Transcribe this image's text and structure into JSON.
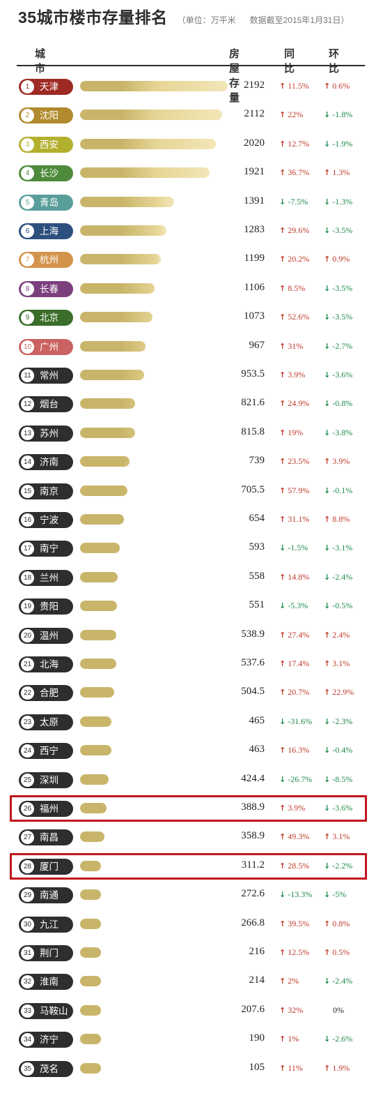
{
  "header": {
    "title": "35城市楼市存量排名",
    "unit_note": "（单位：万平米",
    "as_of_note": "数据截至2015年1月31日）",
    "col_city": "城市",
    "col_stock": "房屋存量",
    "col_yoy": "同比",
    "col_mom": "环比"
  },
  "colors": {
    "bar_dark": "#c9b56a",
    "bar_light": "#f2e6b8",
    "up": "#c0392b",
    "down": "#1f8a4c",
    "highlight": "#c0171c",
    "default_pill": "#2e2e2e"
  },
  "highlighted_ranks": [
    26,
    28
  ],
  "chart_data": {
    "type": "bar",
    "title": "35城市楼市存量排名",
    "ylabel": "房屋存量",
    "categories": [
      "天津",
      "沈阳",
      "西安",
      "长沙",
      "青岛",
      "上海",
      "杭州",
      "长春",
      "北京",
      "广州",
      "常州",
      "烟台",
      "苏州",
      "济南",
      "南京",
      "宁波",
      "南宁",
      "兰州",
      "贵阳",
      "温州",
      "北海",
      "合肥",
      "太原",
      "西宁",
      "深圳",
      "福州",
      "南昌",
      "厦门",
      "南通",
      "九江",
      "荆门",
      "淮南",
      "马鞍山",
      "济宁",
      "茂名"
    ],
    "rows": [
      {
        "rank": "1",
        "city": "天津",
        "stock": 2192,
        "stock_text": "2192",
        "yoy": "11.5%",
        "yoy_dir": "up",
        "mom": "0.6%",
        "mom_dir": "up",
        "pill": "#9e2a24"
      },
      {
        "rank": "2",
        "city": "沈阳",
        "stock": 2112,
        "stock_text": "2112",
        "yoy": "22%",
        "yoy_dir": "up",
        "mom": "-1.8%",
        "mom_dir": "down",
        "pill": "#b08a2c"
      },
      {
        "rank": "3",
        "city": "西安",
        "stock": 2020,
        "stock_text": "2020",
        "yoy": "12.7%",
        "yoy_dir": "up",
        "mom": "-1.9%",
        "mom_dir": "down",
        "pill": "#b3b02e"
      },
      {
        "rank": "4",
        "city": "长沙",
        "stock": 1921,
        "stock_text": "1921",
        "yoy": "36.7%",
        "yoy_dir": "up",
        "mom": "1.3%",
        "mom_dir": "up",
        "pill": "#4e8a3c"
      },
      {
        "rank": "5",
        "city": "青岛",
        "stock": 1391,
        "stock_text": "1391",
        "yoy": "-7.5%",
        "yoy_dir": "down",
        "mom": "-1.3%",
        "mom_dir": "down",
        "pill": "#5a9e9a"
      },
      {
        "rank": "6",
        "city": "上海",
        "stock": 1283,
        "stock_text": "1283",
        "yoy": "29.6%",
        "yoy_dir": "up",
        "mom": "-3.5%",
        "mom_dir": "down",
        "pill": "#2d4f7e"
      },
      {
        "rank": "7",
        "city": "杭州",
        "stock": 1199,
        "stock_text": "1199",
        "yoy": "20.2%",
        "yoy_dir": "up",
        "mom": "0.9%",
        "mom_dir": "up",
        "pill": "#d4944c"
      },
      {
        "rank": "8",
        "city": "长春",
        "stock": 1106,
        "stock_text": "1106",
        "yoy": "8.5%",
        "yoy_dir": "up",
        "mom": "-3.5%",
        "mom_dir": "down",
        "pill": "#7b3f7e"
      },
      {
        "rank": "9",
        "city": "北京",
        "stock": 1073,
        "stock_text": "1073",
        "yoy": "52.6%",
        "yoy_dir": "up",
        "mom": "-3.5%",
        "mom_dir": "down",
        "pill": "#3b6e2a"
      },
      {
        "rank": "10",
        "city": "广州",
        "stock": 967,
        "stock_text": "967",
        "yoy": "31%",
        "yoy_dir": "up",
        "mom": "-2.7%",
        "mom_dir": "down",
        "pill": "#c96260"
      },
      {
        "rank": "11",
        "city": "常州",
        "stock": 953.5,
        "stock_text": "953.5",
        "yoy": "3.9%",
        "yoy_dir": "up",
        "mom": "-3.6%",
        "mom_dir": "down",
        "pill": "#2e2e2e"
      },
      {
        "rank": "12",
        "city": "烟台",
        "stock": 821.6,
        "stock_text": "821.6",
        "yoy": "24.9%",
        "yoy_dir": "up",
        "mom": "-0.8%",
        "mom_dir": "down",
        "pill": "#2e2e2e"
      },
      {
        "rank": "13",
        "city": "苏州",
        "stock": 815.8,
        "stock_text": "815.8",
        "yoy": "19%",
        "yoy_dir": "up",
        "mom": "-3.8%",
        "mom_dir": "down",
        "pill": "#2e2e2e"
      },
      {
        "rank": "14",
        "city": "济南",
        "stock": 739,
        "stock_text": "739",
        "yoy": "23.5%",
        "yoy_dir": "up",
        "mom": "3.9%",
        "mom_dir": "up",
        "pill": "#2e2e2e"
      },
      {
        "rank": "15",
        "city": "南京",
        "stock": 705.5,
        "stock_text": "705.5",
        "yoy": "57.9%",
        "yoy_dir": "up",
        "mom": "-0.1%",
        "mom_dir": "down",
        "pill": "#2e2e2e"
      },
      {
        "rank": "16",
        "city": "宁波",
        "stock": 654,
        "stock_text": "654",
        "yoy": "31.1%",
        "yoy_dir": "up",
        "mom": "8.8%",
        "mom_dir": "up",
        "pill": "#2e2e2e"
      },
      {
        "rank": "17",
        "city": "南宁",
        "stock": 593,
        "stock_text": "593",
        "yoy": "-1.5%",
        "yoy_dir": "down",
        "mom": "-3.1%",
        "mom_dir": "down",
        "pill": "#2e2e2e"
      },
      {
        "rank": "18",
        "city": "兰州",
        "stock": 558,
        "stock_text": "558",
        "yoy": "14.8%",
        "yoy_dir": "up",
        "mom": "-2.4%",
        "mom_dir": "down",
        "pill": "#2e2e2e"
      },
      {
        "rank": "19",
        "city": "贵阳",
        "stock": 551,
        "stock_text": "551",
        "yoy": "-5.3%",
        "yoy_dir": "down",
        "mom": "-0.5%",
        "mom_dir": "down",
        "pill": "#2e2e2e"
      },
      {
        "rank": "20",
        "city": "温州",
        "stock": 538.9,
        "stock_text": "538.9",
        "yoy": "27.4%",
        "yoy_dir": "up",
        "mom": "2.4%",
        "mom_dir": "up",
        "pill": "#2e2e2e"
      },
      {
        "rank": "21",
        "city": "北海",
        "stock": 537.6,
        "stock_text": "537.6",
        "yoy": "17.4%",
        "yoy_dir": "up",
        "mom": "3.1%",
        "mom_dir": "up",
        "pill": "#2e2e2e"
      },
      {
        "rank": "22",
        "city": "合肥",
        "stock": 504.5,
        "stock_text": "504.5",
        "yoy": "20.7%",
        "yoy_dir": "up",
        "mom": "22.9%",
        "mom_dir": "up",
        "pill": "#2e2e2e"
      },
      {
        "rank": "23",
        "city": "太原",
        "stock": 465,
        "stock_text": "465",
        "yoy": "-31.6%",
        "yoy_dir": "down",
        "mom": "-2.3%",
        "mom_dir": "down",
        "pill": "#2e2e2e"
      },
      {
        "rank": "24",
        "city": "西宁",
        "stock": 463,
        "stock_text": "463",
        "yoy": "16.3%",
        "yoy_dir": "up",
        "mom": "-0.4%",
        "mom_dir": "down",
        "pill": "#2e2e2e"
      },
      {
        "rank": "25",
        "city": "深圳",
        "stock": 424.4,
        "stock_text": "424.4",
        "yoy": "-26.7%",
        "yoy_dir": "down",
        "mom": "-8.5%",
        "mom_dir": "down",
        "pill": "#2e2e2e"
      },
      {
        "rank": "26",
        "city": "福州",
        "stock": 388.9,
        "stock_text": "388.9",
        "yoy": "3.9%",
        "yoy_dir": "up",
        "mom": "-3.6%",
        "mom_dir": "down",
        "pill": "#2e2e2e"
      },
      {
        "rank": "27",
        "city": "南昌",
        "stock": 358.9,
        "stock_text": "358.9",
        "yoy": "49.3%",
        "yoy_dir": "up",
        "mom": "3.1%",
        "mom_dir": "up",
        "pill": "#2e2e2e"
      },
      {
        "rank": "28",
        "city": "厦门",
        "stock": 311.2,
        "stock_text": "311.2",
        "yoy": "28.5%",
        "yoy_dir": "up",
        "mom": "-2.2%",
        "mom_dir": "down",
        "pill": "#2e2e2e"
      },
      {
        "rank": "29",
        "city": "南通",
        "stock": 272.6,
        "stock_text": "272.6",
        "yoy": "-13.3%",
        "yoy_dir": "down",
        "mom": "-5%",
        "mom_dir": "down",
        "pill": "#2e2e2e"
      },
      {
        "rank": "30",
        "city": "九江",
        "stock": 266.8,
        "stock_text": "266.8",
        "yoy": "39.5%",
        "yoy_dir": "up",
        "mom": "0.8%",
        "mom_dir": "up",
        "pill": "#2e2e2e"
      },
      {
        "rank": "31",
        "city": "荆门",
        "stock": 216,
        "stock_text": "216",
        "yoy": "12.5%",
        "yoy_dir": "up",
        "mom": "0.5%",
        "mom_dir": "up",
        "pill": "#2e2e2e"
      },
      {
        "rank": "32",
        "city": "淮南",
        "stock": 214,
        "stock_text": "214",
        "yoy": "2%",
        "yoy_dir": "up",
        "mom": "-2.4%",
        "mom_dir": "down",
        "pill": "#2e2e2e"
      },
      {
        "rank": "33",
        "city": "马鞍山",
        "stock": 207.6,
        "stock_text": "207.6",
        "yoy": "32%",
        "yoy_dir": "up",
        "mom": "0%",
        "mom_dir": "flat",
        "pill": "#2e2e2e"
      },
      {
        "rank": "34",
        "city": "济宁",
        "stock": 190,
        "stock_text": "190",
        "yoy": "1%",
        "yoy_dir": "up",
        "mom": "-2.6%",
        "mom_dir": "down",
        "pill": "#2e2e2e"
      },
      {
        "rank": "35",
        "city": "茂名",
        "stock": 105,
        "stock_text": "105",
        "yoy": "11%",
        "yoy_dir": "up",
        "mom": "1.9%",
        "mom_dir": "up",
        "pill": "#2e2e2e"
      }
    ]
  }
}
